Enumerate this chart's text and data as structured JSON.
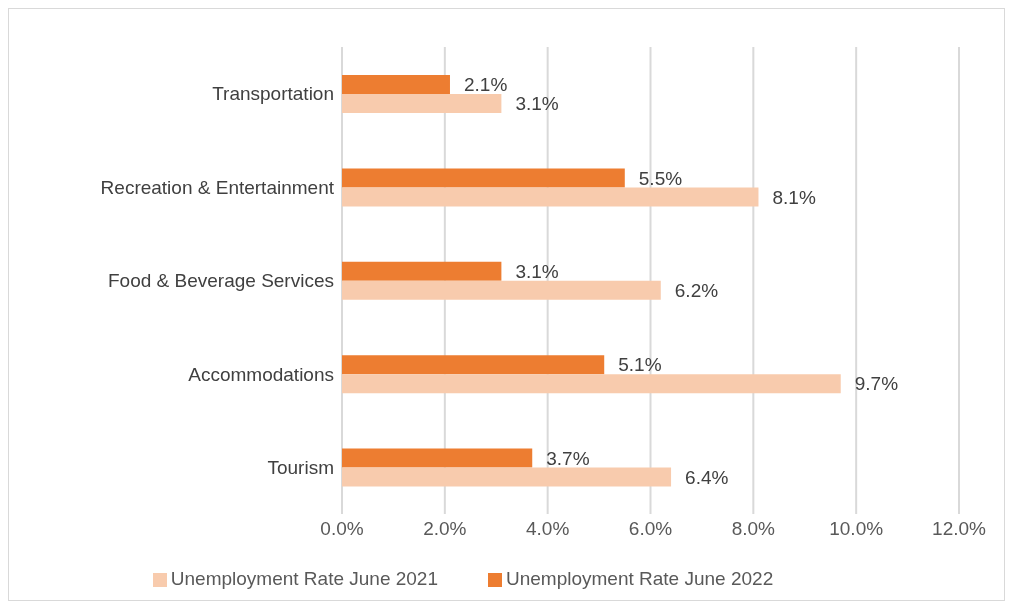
{
  "chart_data": {
    "type": "bar",
    "orientation": "horizontal",
    "categories": [
      "Transportation",
      "Recreation & Entertainment",
      "Food & Beverage Services",
      "Accommodations",
      "Tourism"
    ],
    "series": [
      {
        "name": "Unemployment Rate June 2022",
        "color": "#ed7d31",
        "values": [
          2.1,
          5.5,
          3.1,
          5.1,
          3.7
        ],
        "value_labels": [
          "2.1%",
          "5.5%",
          "3.1%",
          "5.1%",
          "3.7%"
        ]
      },
      {
        "name": "Unemployment Rate June 2021",
        "color": "#f8cbad",
        "values": [
          3.1,
          8.1,
          6.2,
          9.7,
          6.4
        ],
        "value_labels": [
          "3.1%",
          "8.1%",
          "6.2%",
          "9.7%",
          "6.4%"
        ]
      }
    ],
    "xlim": [
      0,
      12
    ],
    "xticks": [
      {
        "value": 0,
        "label": "0.0%"
      },
      {
        "value": 2,
        "label": "2.0%"
      },
      {
        "value": 4,
        "label": "4.0%"
      },
      {
        "value": 6,
        "label": "6.0%"
      },
      {
        "value": 8,
        "label": "8.0%"
      },
      {
        "value": 10,
        "label": "10.0%"
      },
      {
        "value": 12,
        "label": "12.0%"
      }
    ],
    "grid": "x",
    "legend": "bottom"
  }
}
